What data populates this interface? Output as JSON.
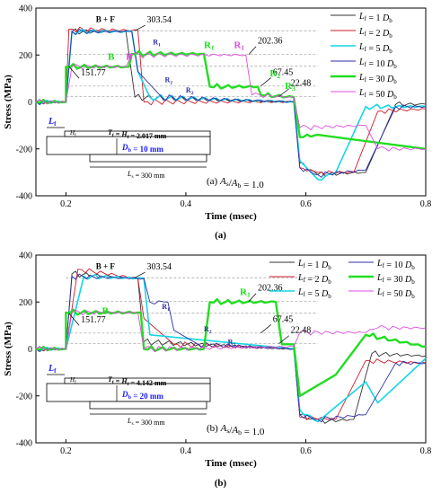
{
  "chart_data": [
    {
      "type": "line",
      "panel_label": "(a)",
      "annotation": "(a)  A_s/A_b = 1.0",
      "title": "",
      "xlabel": "Time (msec)",
      "ylabel": "Stress (MPa)",
      "xlim": [
        0.15,
        0.8
      ],
      "ylim": [
        -400,
        400
      ],
      "xticks": [
        0.2,
        0.4,
        0.6,
        0.8
      ],
      "yticks": [
        -400,
        -200,
        0,
        200,
        400
      ],
      "grid": false,
      "legend_position": "top-right",
      "legend": [
        {
          "label": "L_f = 1 D_b",
          "color": "#333333"
        },
        {
          "label": "L_f = 2 D_b",
          "color": "#d11a2a"
        },
        {
          "label": "L_f = 5 D_b",
          "color": "#14d6e6"
        },
        {
          "label": "L_f = 10 D_b",
          "color": "#2e2ea8"
        },
        {
          "label": "L_f = 30 D_b",
          "color": "#22dd22"
        },
        {
          "label": "L_f = 50 D_b",
          "color": "#e04ee0"
        }
      ],
      "series": [
        {
          "name": "L_f = 1 D_b",
          "color": "#333333",
          "width": 0.9,
          "points": [
            [
              0.15,
              0
            ],
            [
              0.2,
              0
            ],
            [
              0.21,
              300
            ],
            [
              0.3,
              300
            ],
            [
              0.315,
              20
            ],
            [
              0.58,
              0
            ],
            [
              0.59,
              -260
            ],
            [
              0.62,
              -310
            ],
            [
              0.7,
              -300
            ],
            [
              0.75,
              -10
            ],
            [
              0.8,
              -10
            ]
          ]
        },
        {
          "name": "L_f = 2 D_b",
          "color": "#d11a2a",
          "width": 0.9,
          "points": [
            [
              0.15,
              0
            ],
            [
              0.2,
              0
            ],
            [
              0.205,
              310
            ],
            [
              0.32,
              305
            ],
            [
              0.33,
              0
            ],
            [
              0.58,
              0
            ],
            [
              0.59,
              -280
            ],
            [
              0.62,
              -300
            ],
            [
              0.68,
              -300
            ],
            [
              0.72,
              -40
            ],
            [
              0.8,
              -30
            ]
          ]
        },
        {
          "name": "L_f = 5 D_b",
          "color": "#14d6e6",
          "width": 1.6,
          "points": [
            [
              0.15,
              0
            ],
            [
              0.2,
              0
            ],
            [
              0.21,
              300
            ],
            [
              0.31,
              300
            ],
            [
              0.32,
              130
            ],
            [
              0.34,
              20
            ],
            [
              0.58,
              0
            ],
            [
              0.59,
              -250
            ],
            [
              0.62,
              -330
            ],
            [
              0.65,
              -300
            ],
            [
              0.7,
              -20
            ],
            [
              0.8,
              -20
            ]
          ]
        },
        {
          "name": "L_f = 10 D_b",
          "color": "#2e2ea8",
          "width": 0.9,
          "points": [
            [
              0.15,
              0
            ],
            [
              0.2,
              0
            ],
            [
              0.21,
              300
            ],
            [
              0.31,
              300
            ],
            [
              0.32,
              130
            ],
            [
              0.36,
              20
            ],
            [
              0.58,
              0
            ],
            [
              0.59,
              -280
            ],
            [
              0.62,
              -310
            ],
            [
              0.7,
              -290
            ],
            [
              0.75,
              -20
            ],
            [
              0.8,
              -20
            ]
          ]
        },
        {
          "name": "L_f = 30 D_b",
          "color": "#22dd22",
          "width": 2.4,
          "points": [
            [
              0.15,
              0
            ],
            [
              0.2,
              0
            ],
            [
              0.2,
              150
            ],
            [
              0.305,
              150
            ],
            [
              0.31,
              205
            ],
            [
              0.43,
              205
            ],
            [
              0.44,
              65
            ],
            [
              0.52,
              65
            ],
            [
              0.525,
              30
            ],
            [
              0.58,
              20
            ],
            [
              0.59,
              -150
            ],
            [
              0.62,
              -140
            ],
            [
              0.8,
              -200
            ]
          ]
        },
        {
          "name": "L_f = 50 D_b",
          "color": "#e04ee0",
          "width": 0.9,
          "points": [
            [
              0.15,
              0
            ],
            [
              0.2,
              0
            ],
            [
              0.21,
              150
            ],
            [
              0.3,
              150
            ],
            [
              0.31,
              200
            ],
            [
              0.5,
              200
            ],
            [
              0.51,
              30
            ],
            [
              0.58,
              20
            ],
            [
              0.59,
              -110
            ],
            [
              0.7,
              -100
            ],
            [
              0.72,
              -200
            ],
            [
              0.8,
              -200
            ]
          ]
        }
      ],
      "value_labels": [
        "303.54",
        "202.36",
        "151.77",
        "67.45",
        "22.48"
      ],
      "region_labels": [
        "B + F",
        "B",
        "B",
        "R1",
        "R1",
        "R1",
        "R2",
        "R2",
        "R2",
        "R3"
      ],
      "inset": {
        "lf_label": "L_f",
        "h_label": "H_f",
        "t_label": "T_f = H_f = 2.017 mm",
        "d_label": "D_b = 10 mm",
        "ls_label": "L_s = 300 mm"
      }
    },
    {
      "type": "line",
      "panel_label": "(b)",
      "annotation": "(b)  A_s/A_b = 1.0",
      "title": "",
      "xlabel": "Time (msec)",
      "ylabel": "Stress (MPa)",
      "xlim": [
        0.15,
        0.8
      ],
      "ylim": [
        -400,
        400
      ],
      "xticks": [
        0.2,
        0.4,
        0.6,
        0.8
      ],
      "yticks": [
        -400,
        -200,
        0,
        200,
        400
      ],
      "grid": false,
      "legend_position": "top-right",
      "legend": [
        {
          "label": "L_f = 1 D_b",
          "color": "#333333"
        },
        {
          "label": "L_f = 2 D_b",
          "color": "#d11a2a"
        },
        {
          "label": "L_f = 5 D_b",
          "color": "#14d6e6"
        },
        {
          "label": "L_f = 10 D_b",
          "color": "#2e2ea8"
        },
        {
          "label": "L_f = 30 D_b",
          "color": "#22dd22"
        },
        {
          "label": "L_f = 50 D_b",
          "color": "#e04ee0"
        }
      ],
      "series": [
        {
          "name": "L_f = 1 D_b",
          "color": "#333333",
          "width": 0.9,
          "points": [
            [
              0.15,
              0
            ],
            [
              0.2,
              0
            ],
            [
              0.21,
              320
            ],
            [
              0.32,
              300
            ],
            [
              0.33,
              30
            ],
            [
              0.58,
              0
            ],
            [
              0.59,
              -280
            ],
            [
              0.62,
              -310
            ],
            [
              0.68,
              -300
            ],
            [
              0.71,
              -20
            ],
            [
              0.8,
              -30
            ]
          ]
        },
        {
          "name": "L_f = 2 D_b",
          "color": "#d11a2a",
          "width": 0.9,
          "points": [
            [
              0.15,
              0
            ],
            [
              0.2,
              0
            ],
            [
              0.22,
              340
            ],
            [
              0.32,
              300
            ],
            [
              0.33,
              130
            ],
            [
              0.38,
              20
            ],
            [
              0.58,
              0
            ],
            [
              0.59,
              -290
            ],
            [
              0.65,
              -300
            ],
            [
              0.7,
              -50
            ],
            [
              0.8,
              -60
            ]
          ]
        },
        {
          "name": "L_f = 5 D_b",
          "color": "#14d6e6",
          "width": 1.6,
          "points": [
            [
              0.15,
              0
            ],
            [
              0.2,
              0
            ],
            [
              0.23,
              310
            ],
            [
              0.33,
              300
            ],
            [
              0.34,
              60
            ],
            [
              0.58,
              0
            ],
            [
              0.59,
              -260
            ],
            [
              0.62,
              -310
            ],
            [
              0.7,
              -140
            ],
            [
              0.72,
              -230
            ],
            [
              0.8,
              -40
            ]
          ]
        },
        {
          "name": "L_f = 10 D_b",
          "color": "#2e2ea8",
          "width": 0.9,
          "points": [
            [
              0.15,
              0
            ],
            [
              0.2,
              0
            ],
            [
              0.21,
              310
            ],
            [
              0.33,
              300
            ],
            [
              0.34,
              200
            ],
            [
              0.37,
              200
            ],
            [
              0.38,
              80
            ],
            [
              0.42,
              20
            ],
            [
              0.58,
              0
            ],
            [
              0.59,
              -280
            ],
            [
              0.62,
              -300
            ],
            [
              0.7,
              -280
            ],
            [
              0.75,
              -60
            ],
            [
              0.8,
              -60
            ]
          ]
        },
        {
          "name": "L_f = 30 D_b",
          "color": "#22dd22",
          "width": 2.4,
          "points": [
            [
              0.15,
              0
            ],
            [
              0.2,
              0
            ],
            [
              0.2,
              155
            ],
            [
              0.325,
              155
            ],
            [
              0.33,
              0
            ],
            [
              0.43,
              0
            ],
            [
              0.44,
              200
            ],
            [
              0.55,
              200
            ],
            [
              0.56,
              20
            ],
            [
              0.58,
              20
            ],
            [
              0.59,
              -200
            ],
            [
              0.65,
              -110
            ],
            [
              0.7,
              60
            ],
            [
              0.8,
              10
            ]
          ]
        },
        {
          "name": "L_f = 50 D_b",
          "color": "#e04ee0",
          "width": 0.9,
          "points": [
            [
              0.15,
              0
            ],
            [
              0.2,
              0
            ],
            [
              0.21,
              155
            ],
            [
              0.32,
              155
            ],
            [
              0.33,
              0
            ],
            [
              0.58,
              10
            ],
            [
              0.59,
              70
            ],
            [
              0.7,
              70
            ],
            [
              0.72,
              90
            ],
            [
              0.8,
              90
            ]
          ]
        }
      ],
      "value_labels": [
        "303.54",
        "202.36",
        "151.77",
        "67.45",
        "22.48"
      ],
      "region_labels": [
        "B + F",
        "B",
        "R1",
        "R1",
        "R2",
        "R2"
      ],
      "inset": {
        "lf_label": "L_f",
        "h_label": "H_f",
        "t_label": "T_f = H_f = 4.142 mm",
        "d_label": "D_b = 20 mm",
        "ls_label": "L_s = 300 mm"
      }
    }
  ],
  "captions": [
    "(a)",
    "(b)"
  ]
}
